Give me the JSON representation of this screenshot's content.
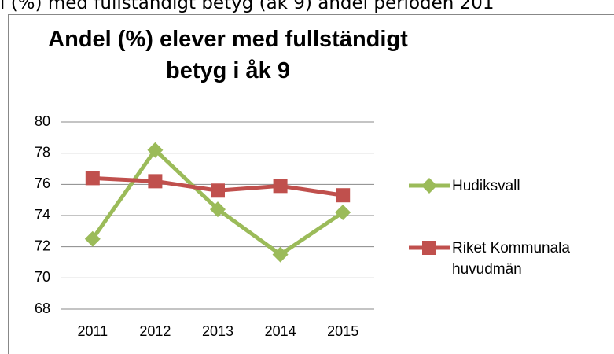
{
  "caption": "l (%) med fullständigt betyg (åk 9) andel perioden 201",
  "chart_data": {
    "type": "line",
    "title": "Andel (%) elever med fullständigt betyg i åk 9",
    "categories": [
      "2011",
      "2012",
      "2013",
      "2014",
      "2015"
    ],
    "series": [
      {
        "name": "Hudiksvall",
        "color": "#9bbb59",
        "values": [
          72.5,
          78.2,
          74.4,
          71.5,
          74.2
        ]
      },
      {
        "name": "Riket Kommunala huvudmän",
        "color": "#c0504d",
        "values": [
          76.4,
          76.2,
          75.6,
          75.9,
          75.3
        ]
      }
    ],
    "ylim": [
      68,
      80
    ],
    "yticks": [
      68,
      70,
      72,
      74,
      76,
      78,
      80
    ],
    "grid": true,
    "legend": "right"
  }
}
